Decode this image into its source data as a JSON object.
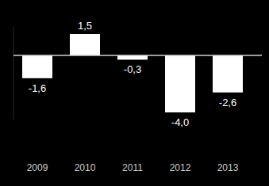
{
  "chart_data": {
    "type": "bar",
    "categories": [
      "2009",
      "2010",
      "2011",
      "2012",
      "2013"
    ],
    "values": [
      -1.6,
      1.5,
      -0.3,
      -4.0,
      -2.6
    ],
    "value_labels": [
      "-1,6",
      "1,5",
      "-0,3",
      "-4,0",
      "-2,6"
    ],
    "color": "#ffffff",
    "ylim": [
      -4.5,
      2
    ],
    "yticks": [
      0
    ],
    "data_labels": true,
    "tick_labels": "x",
    "grid": false
  }
}
